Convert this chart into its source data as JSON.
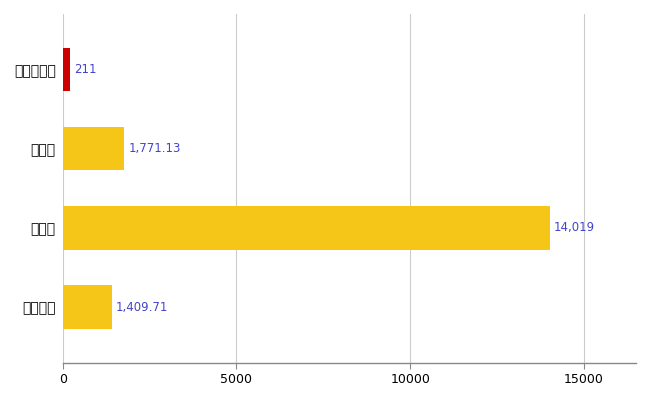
{
  "categories": [
    "吉備中央町",
    "県平均",
    "県最大",
    "全国平均"
  ],
  "values": [
    211,
    1771.13,
    14019,
    1409.71
  ],
  "bar_colors": [
    "#cc0000",
    "#f5c518",
    "#f5c518",
    "#f5c518"
  ],
  "label_texts": [
    "211",
    "1,771.13",
    "14,019",
    "1,409.71"
  ],
  "label_color": "#4444cc",
  "xlim": [
    0,
    16500
  ],
  "xticks": [
    0,
    5000,
    10000,
    15000
  ],
  "xtick_labels": [
    "0",
    "5000",
    "10000",
    "15000"
  ],
  "background_color": "#ffffff",
  "bar_height": 0.55,
  "grid_color": "#cccccc",
  "bar_spacing": 0.9
}
